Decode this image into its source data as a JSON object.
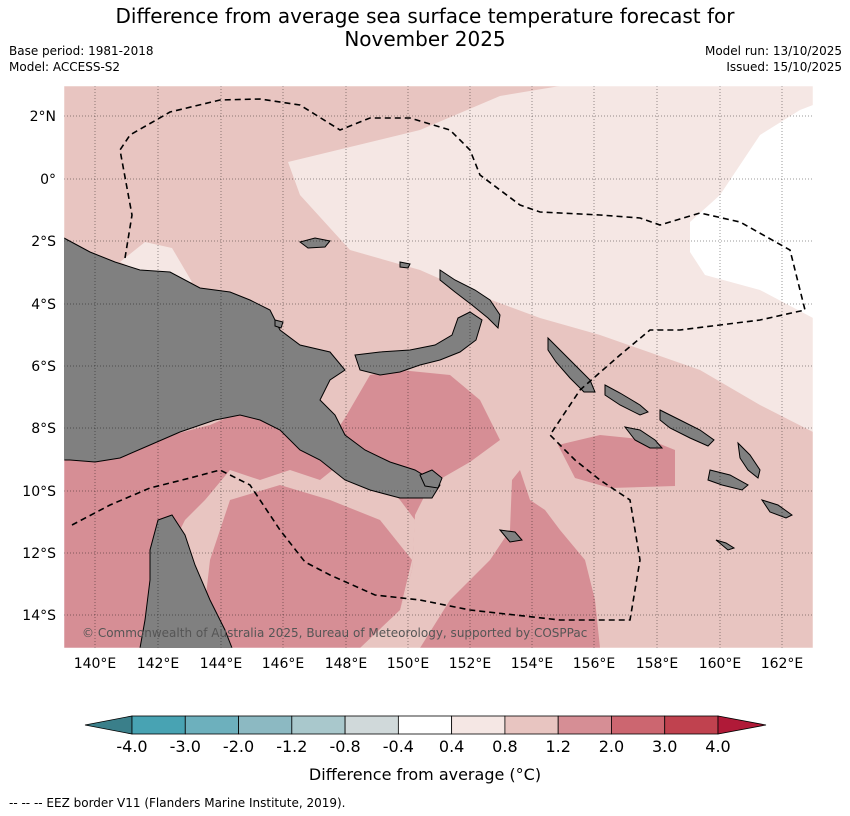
{
  "header": {
    "title_line1": "Difference from average sea surface temperature forecast for",
    "title_line2": "November 2025",
    "base_period": "Base period: 1981-2018",
    "model": "Model: ACCESS-S2",
    "model_run": "Model run: 13/10/2025",
    "issued": "Issued: 15/10/2025"
  },
  "map": {
    "lon_ticks": [
      "140°E",
      "142°E",
      "144°E",
      "146°E",
      "148°E",
      "150°E",
      "152°E",
      "154°E",
      "156°E",
      "158°E",
      "160°E",
      "162°E"
    ],
    "lat_ticks": [
      "2°N",
      "0°",
      "2°S",
      "4°S",
      "6°S",
      "8°S",
      "10°S",
      "12°S",
      "14°S"
    ],
    "copyright": "© Commonwealth of Australia 2025, Bureau of Meteorology, supported by COSPPac"
  },
  "colorbar": {
    "colors": [
      "#3a7f8a",
      "#48a3b3",
      "#6db0bd",
      "#8cb9c2",
      "#a9c8cc",
      "#d0d9da",
      "#ffffff",
      "#f5e7e4",
      "#e8c5c1",
      "#d68e95",
      "#cc6670",
      "#c0424f",
      "#b01a38"
    ],
    "labels": [
      "-4.0",
      "-3.0",
      "-2.0",
      "-1.2",
      "-0.8",
      "-0.4",
      "0.4",
      "0.8",
      "1.2",
      "2.0",
      "3.0",
      "4.0"
    ],
    "axis_label": "Difference from average (°C)"
  },
  "footer": {
    "legend_text": "--  --  -- EEZ border V11 (Flanders Marine Institute, 2019)."
  }
}
